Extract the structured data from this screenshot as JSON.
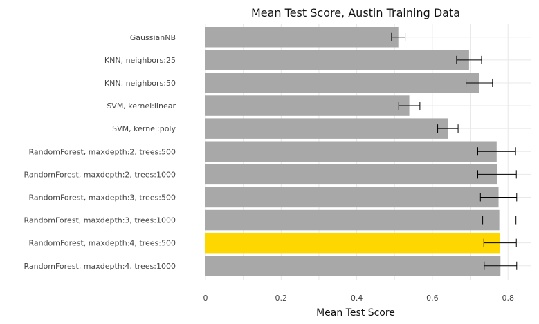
{
  "chart_data": {
    "type": "bar",
    "orientation": "horizontal",
    "title": "Mean Test Score, Austin Training Data",
    "xlabel": "Mean Test Score",
    "ylabel": "",
    "xlim": [
      0,
      0.86
    ],
    "xticks": [
      0,
      0.2,
      0.4,
      0.6,
      0.8
    ],
    "xtick_labels": [
      "0",
      "0.2",
      "0.4",
      "0.6",
      "0.8"
    ],
    "grid": true,
    "colors": {
      "default": "#a8a8a8",
      "highlight": "#ffd700",
      "error_bar": "#000000"
    },
    "categories": [
      "GaussianNB",
      "KNN, neighbors:25",
      "KNN, neighbors:50",
      "SVM, kernel:linear",
      "SVM, kernel:poly",
      "RandomForest, maxdepth:2, trees:500",
      "RandomForest, maxdepth:2, trees:1000",
      "RandomForest, maxdepth:3, trees:500",
      "RandomForest, maxdepth:3, trees:1000",
      "RandomForest, maxdepth:4, trees:500",
      "RandomForest, maxdepth:4, trees:1000"
    ],
    "values": [
      0.51,
      0.697,
      0.724,
      0.539,
      0.641,
      0.77,
      0.771,
      0.775,
      0.777,
      0.779,
      0.78
    ],
    "errors": [
      0.018,
      0.033,
      0.035,
      0.028,
      0.027,
      0.05,
      0.051,
      0.048,
      0.044,
      0.043,
      0.043
    ],
    "highlight_index": 9
  }
}
